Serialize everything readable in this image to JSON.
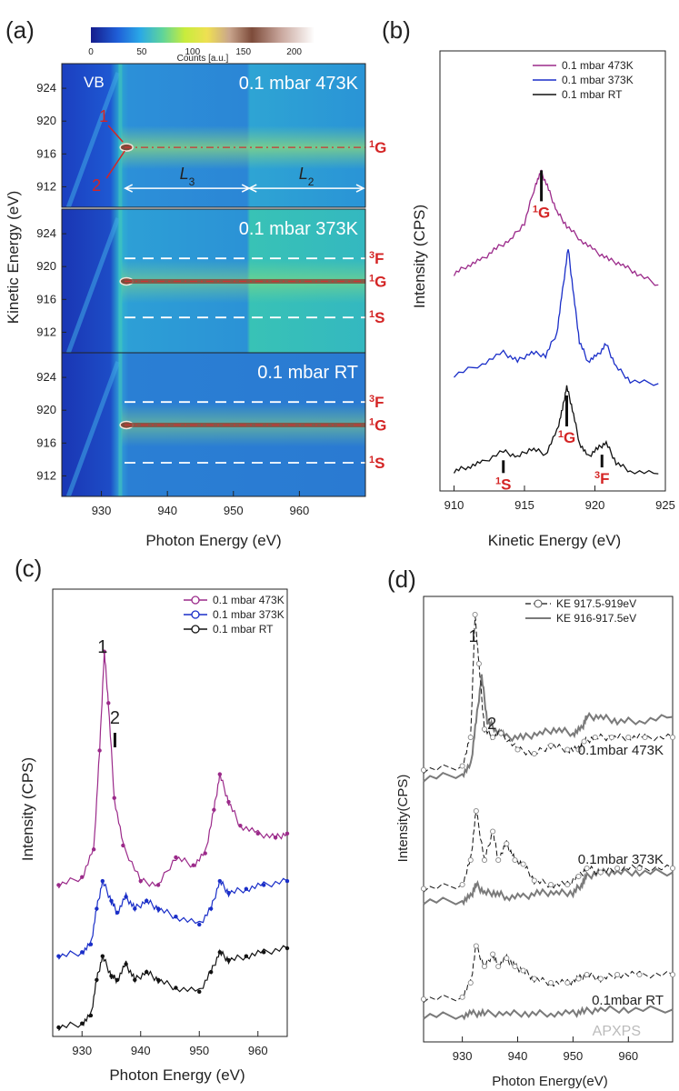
{
  "panels": {
    "a": "(a)",
    "b": "(b)",
    "c": "(c)",
    "d": "(d)"
  },
  "watermark": "APXPS",
  "colors": {
    "purple": "#9b2a8a",
    "blue": "#1a2ec8",
    "black": "#111111",
    "gray": "#7a7a7a",
    "red": "#d42525"
  },
  "chart_data": [
    {
      "id": "a",
      "type": "heatmap",
      "xlabel": "Photon Energy (eV)",
      "ylabel": "Kinetic Energy (eV)",
      "xlim": [
        924,
        970
      ],
      "x_ticks": [
        "930",
        "940",
        "950",
        "960"
      ],
      "colorbar": {
        "label": "Counts [a.u.]",
        "ticks": [
          "0",
          "50",
          "100",
          "150",
          "200"
        ],
        "range": [
          0,
          220
        ]
      },
      "subpanels": [
        {
          "condition": "0.1 mbar 473K",
          "y_ticks": [
            "924",
            "920",
            "916",
            "912"
          ],
          "ylim": [
            909.5,
            927
          ],
          "lines": [
            {
              "state": "1G",
              "label_pre": "1",
              "label_main": "G",
              "ke": 916.8,
              "style": "dashdot"
            }
          ],
          "annotations": {
            "vb": "VB",
            "point1": "1",
            "point2": "2",
            "region_left": "L",
            "region_left_sub": "3",
            "region_right": "L",
            "region_right_sub": "2"
          }
        },
        {
          "condition": "0.1 mbar 373K",
          "y_ticks": [
            "924",
            "920",
            "916",
            "912"
          ],
          "ylim": [
            909.5,
            927
          ],
          "lines": [
            {
              "state": "3F",
              "label_pre": "3",
              "label_main": "F",
              "ke": 921.0,
              "style": "dashed"
            },
            {
              "state": "1G",
              "label_pre": "1",
              "label_main": "G",
              "ke": 918.2,
              "style": "dashdot"
            },
            {
              "state": "1S",
              "label_pre": "1",
              "label_main": "S",
              "ke": 913.8,
              "style": "dashed"
            }
          ]
        },
        {
          "condition": "0.1 mbar RT",
          "y_ticks": [
            "924",
            "920",
            "916",
            "912"
          ],
          "ylim": [
            909.5,
            927
          ],
          "lines": [
            {
              "state": "3F",
              "label_pre": "3",
              "label_main": "F",
              "ke": 921.0,
              "style": "dashed"
            },
            {
              "state": "1G",
              "label_pre": "1",
              "label_main": "G",
              "ke": 918.2,
              "style": "dashdot"
            },
            {
              "state": "1S",
              "label_pre": "1",
              "label_main": "S",
              "ke": 913.6,
              "style": "dashed"
            }
          ]
        }
      ]
    },
    {
      "id": "b",
      "type": "line",
      "xlabel": "Kinetic Energy (eV)",
      "ylabel": "Intensity (CPS)",
      "xlim": [
        909,
        925
      ],
      "x_ticks": [
        "910",
        "915",
        "920",
        "925"
      ],
      "series": [
        {
          "name": "0.1 mbar 473K",
          "color": "purple",
          "offset": 0.7,
          "x": [
            910,
            911,
            912,
            913,
            914,
            915,
            915.8,
            916.2,
            916.7,
            917.3,
            918,
            919,
            920,
            921,
            922,
            923,
            924.5
          ],
          "y": [
            0.0,
            0.03,
            0.05,
            0.09,
            0.12,
            0.18,
            0.32,
            0.36,
            0.3,
            0.22,
            0.17,
            0.12,
            0.08,
            0.05,
            0.03,
            0.0,
            -0.04
          ]
        },
        {
          "name": "0.1 mbar 373K",
          "color": "blue",
          "offset": 0.34,
          "x": [
            910,
            912,
            913.5,
            914.5,
            915.5,
            916.5,
            917.3,
            917.7,
            918.1,
            918.5,
            918.9,
            919.5,
            920.2,
            920.8,
            921.5,
            922.5,
            924.5
          ],
          "y": [
            0.0,
            0.04,
            0.08,
            0.05,
            0.08,
            0.07,
            0.15,
            0.3,
            0.45,
            0.28,
            0.12,
            0.05,
            0.07,
            0.11,
            0.03,
            -0.02,
            -0.03
          ]
        },
        {
          "name": "0.1 mbar RT",
          "color": "black",
          "offset": 0.0,
          "x": [
            910,
            911,
            912,
            913.5,
            914.5,
            915.5,
            916.5,
            917.3,
            917.7,
            918,
            918.4,
            918.9,
            919.5,
            920.2,
            920.8,
            921.5,
            922.5,
            924.5
          ],
          "y": [
            0.0,
            0.015,
            0.03,
            0.07,
            0.05,
            0.08,
            0.06,
            0.14,
            0.22,
            0.3,
            0.22,
            0.1,
            0.05,
            0.08,
            0.1,
            0.03,
            0.0,
            -0.01
          ]
        }
      ],
      "markers": [
        {
          "state": "1G",
          "label_pre": "1",
          "label_main": "G",
          "x": 916.2,
          "series": 0
        },
        {
          "state": "1S",
          "label_pre": "1",
          "label_main": "S",
          "x": 913.5,
          "series": 2
        },
        {
          "state": "1G",
          "label_pre": "1",
          "label_main": "G",
          "x": 918.0,
          "series": 2
        },
        {
          "state": "3F",
          "label_pre": "3",
          "label_main": "F",
          "x": 920.5,
          "series": 2
        }
      ]
    },
    {
      "id": "c",
      "type": "line",
      "xlabel": "Photon Energy (eV)",
      "ylabel": "Intensity (CPS)",
      "xlim": [
        925,
        965
      ],
      "x_ticks": [
        "930",
        "940",
        "950",
        "960"
      ],
      "series": [
        {
          "name": "0.1 mbar 473K",
          "color": "purple",
          "offset": 0.0,
          "x": [
            926,
            930,
            932,
            933,
            933.8,
            934.5,
            935.5,
            937,
            940,
            943,
            946,
            949,
            951,
            952.5,
            953.5,
            955,
            957,
            960,
            963,
            965
          ],
          "y": [
            0.36,
            0.38,
            0.45,
            0.7,
            0.95,
            0.82,
            0.58,
            0.46,
            0.37,
            0.36,
            0.43,
            0.41,
            0.44,
            0.55,
            0.64,
            0.57,
            0.51,
            0.49,
            0.48,
            0.49
          ]
        },
        {
          "name": "0.1 mbar 373K",
          "color": "blue",
          "offset": 0.0,
          "x": [
            926,
            930,
            931.5,
            932.5,
            933.5,
            935,
            936,
            937.5,
            939,
            941,
            943,
            946,
            950,
            952,
            953.5,
            955,
            958,
            961,
            965
          ],
          "y": [
            0.18,
            0.19,
            0.21,
            0.3,
            0.37,
            0.32,
            0.29,
            0.33,
            0.3,
            0.32,
            0.3,
            0.28,
            0.26,
            0.3,
            0.37,
            0.34,
            0.35,
            0.36,
            0.37
          ]
        },
        {
          "name": "0.1 mbar RT",
          "color": "black",
          "offset": 0.0,
          "x": [
            926,
            930,
            931.5,
            932.5,
            933.5,
            935,
            936,
            937.5,
            939,
            941,
            943,
            946,
            950,
            952,
            953.5,
            955,
            958,
            961,
            965
          ],
          "y": [
            0.0,
            0.01,
            0.03,
            0.12,
            0.18,
            0.13,
            0.12,
            0.16,
            0.12,
            0.14,
            0.12,
            0.1,
            0.09,
            0.14,
            0.19,
            0.17,
            0.18,
            0.19,
            0.2
          ]
        }
      ],
      "peaks": [
        {
          "label": "1",
          "x": 933.8
        },
        {
          "label": "2",
          "x": 935.3
        }
      ]
    },
    {
      "id": "d",
      "type": "line",
      "xlabel": "Photon Energy(eV)",
      "ylabel": "Intensity(CPS)",
      "xlim": [
        923,
        968
      ],
      "x_ticks": [
        "930",
        "940",
        "950",
        "960"
      ],
      "series": [
        {
          "name": "KE 917.5-919eV",
          "color": "black",
          "style": "circles"
        },
        {
          "name": "KE 916-917.5eV",
          "color": "gray",
          "style": "solid"
        }
      ],
      "groups": [
        {
          "condition": "0.1mbar 473K",
          "ke1": {
            "x": [
              923,
              930,
              931.5,
              932.3,
              933,
              934,
              935.5,
              937,
              940,
              943,
              946,
              949,
              951,
              952,
              954,
              957,
              960,
              963,
              968
            ],
            "y": [
              0.62,
              0.63,
              0.7,
              1.0,
              0.88,
              0.72,
              0.7,
              0.71,
              0.67,
              0.66,
              0.68,
              0.67,
              0.67,
              0.69,
              0.7,
              0.7,
              0.7,
              0.7,
              0.7
            ]
          },
          "ke2": {
            "x": [
              923,
              930,
              931.5,
              932.5,
              933.5,
              934.5,
              936,
              938,
              941,
              944,
              947,
              950,
              951.5,
              952.5,
              955,
              958,
              962,
              968
            ],
            "y": [
              0.6,
              0.61,
              0.63,
              0.74,
              0.85,
              0.74,
              0.72,
              0.7,
              0.7,
              0.71,
              0.72,
              0.71,
              0.72,
              0.75,
              0.75,
              0.74,
              0.74,
              0.75
            ]
          }
        },
        {
          "condition": "0.1mbar 373K",
          "ke1": {
            "x": [
              923,
              930,
              931.5,
              932.5,
              934,
              935.5,
              936.5,
              938,
              939.5,
              941,
              943,
              946,
              949,
              951,
              952.5,
              955,
              958,
              962,
              968
            ],
            "y": [
              0.33,
              0.34,
              0.4,
              0.52,
              0.4,
              0.47,
              0.4,
              0.44,
              0.4,
              0.39,
              0.35,
              0.34,
              0.34,
              0.36,
              0.38,
              0.37,
              0.38,
              0.38,
              0.38
            ]
          },
          "ke2": {
            "x": [
              923,
              930,
              931.5,
              932.5,
              934,
              936,
              938,
              941,
              944,
              947,
              950,
              951.5,
              952.5,
              955,
              958,
              962,
              968
            ],
            "y": [
              0.3,
              0.3,
              0.31,
              0.34,
              0.32,
              0.32,
              0.31,
              0.31,
              0.32,
              0.32,
              0.32,
              0.34,
              0.36,
              0.37,
              0.37,
              0.37,
              0.37
            ]
          }
        },
        {
          "condition": "0.1mbar RT",
          "ke1": {
            "x": [
              923,
              930,
              931.5,
              932.5,
              934,
              935.5,
              936.5,
              938,
              939.5,
              941,
              943,
              946,
              949,
              951,
              952.5,
              955,
              958,
              962,
              968
            ],
            "y": [
              0.06,
              0.065,
              0.1,
              0.19,
              0.14,
              0.17,
              0.14,
              0.16,
              0.14,
              0.13,
              0.11,
              0.1,
              0.1,
              0.11,
              0.12,
              0.11,
              0.12,
              0.12,
              0.12
            ]
          },
          "ke2": {
            "x": [
              923,
              930,
              932,
              934,
              938,
              942,
              946,
              950,
              952,
              955,
              960,
              968
            ],
            "y": [
              0.02,
              0.02,
              0.025,
              0.025,
              0.025,
              0.025,
              0.025,
              0.025,
              0.03,
              0.035,
              0.035,
              0.035
            ]
          }
        }
      ],
      "peaks": [
        {
          "label": "1",
          "x": 932.3
        },
        {
          "label": "2",
          "x": 933.7
        }
      ]
    }
  ]
}
